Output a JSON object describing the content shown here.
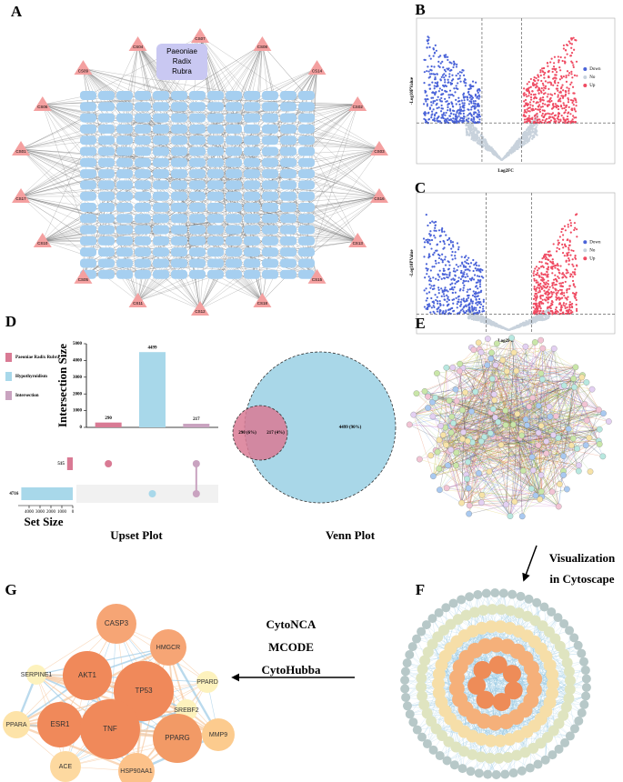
{
  "panels": [
    "A",
    "B",
    "C",
    "D",
    "E",
    "F",
    "G"
  ],
  "network_a": {
    "center": [
      "Paeoniae",
      "Radix",
      "Rubra"
    ],
    "compounds": [
      "CS07",
      "CS08",
      "CS14",
      "CS02",
      "CS03",
      "CS16",
      "CS13",
      "CS15",
      "CS18",
      "CS12",
      "CS11",
      "CS05",
      "CS10",
      "CS17",
      "CS01",
      "CS06",
      "CS09",
      "CS04"
    ]
  },
  "volcano_b": {
    "x_label": "Log2FC",
    "y_label": "-Log10PValue",
    "legend": [
      "Down",
      "No",
      "Up"
    ]
  },
  "volcano_c": {
    "x_label": "Log2FC",
    "y_label": "-Log10PValue",
    "legend": [
      "Down",
      "No",
      "Up"
    ]
  },
  "chart_data": {
    "type": "upset",
    "title": "Upset Plot",
    "y_label": "Intersection Size",
    "categories": [
      null,
      null,
      null
    ],
    "values": [
      290,
      4499,
      217
    ],
    "colors": [
      "#d97a94",
      "#a8d8ea",
      "#c9a3c0"
    ],
    "sets": [
      [
        0
      ],
      [
        1
      ],
      [
        0,
        1
      ]
    ],
    "ylim": [
      0,
      5000
    ],
    "yticks": [
      0,
      1000,
      2000,
      3000,
      4000,
      5000
    ],
    "set_size": {
      "x_label": "Set Size",
      "categories": [
        "Paeoniae Radix Rubra",
        "Hypothyroidism"
      ],
      "values": [
        515,
        4716
      ],
      "colors": [
        "#d97a94",
        "#a8d8ea"
      ],
      "xlim": [
        0,
        5000
      ],
      "xticks": [
        0,
        1000,
        2000,
        3000,
        4000
      ]
    },
    "legend": [
      "Paeoniae Radix Rubra",
      "Hypothyroidism",
      "Intersection"
    ]
  },
  "venn": {
    "title": "Venn Plot",
    "labels": [
      "290 (6%)",
      "217 (4%)",
      "4499 (90%)"
    ]
  },
  "arrow_ef": [
    "Visualization",
    "in Cytoscape"
  ],
  "arrow_fg": [
    "CytoNCA",
    "MCODE",
    "CytoHubba"
  ],
  "network_g": {
    "nodes": [
      "CASP3",
      "HMGCR",
      "AKT1",
      "TP53",
      "PPARD",
      "SERPINE1",
      "SREBF2",
      "PPARA",
      "ESR1",
      "TNF",
      "PPARG",
      "MMP9",
      "ACE",
      "HSP90AA1"
    ]
  }
}
